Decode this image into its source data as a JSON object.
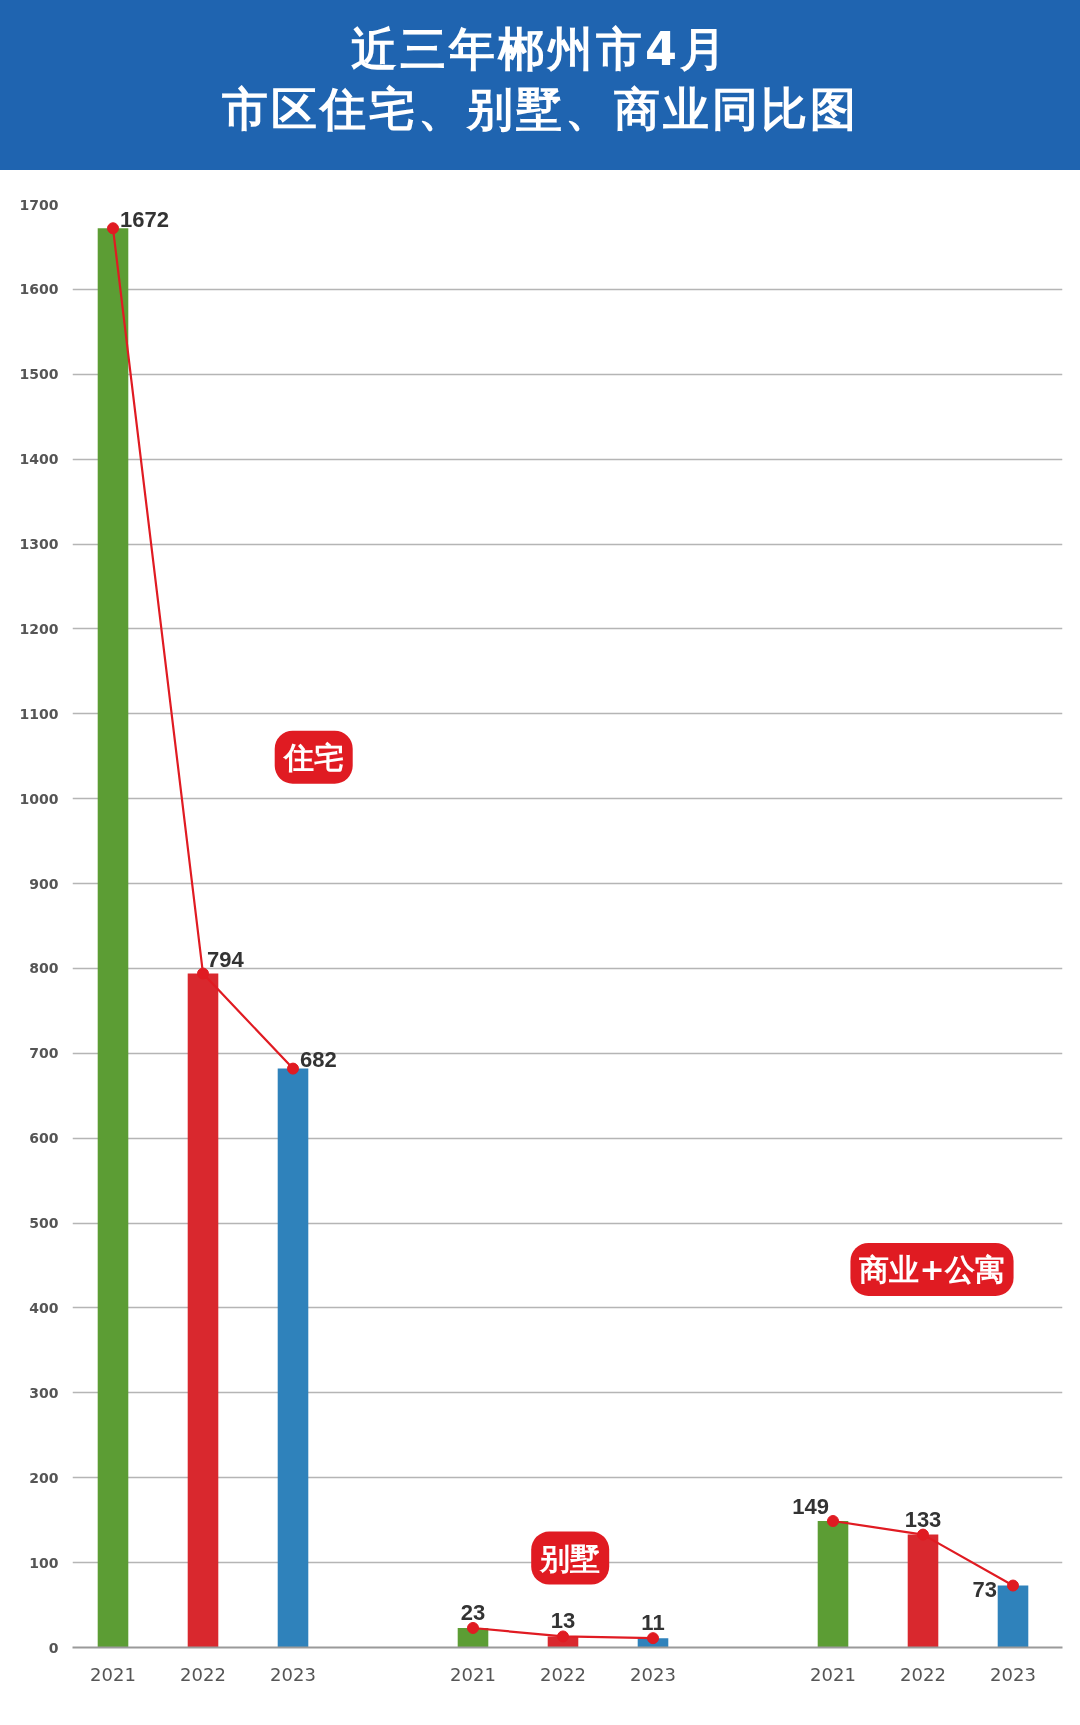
{
  "chart_data": {
    "type": "bar",
    "title": "近三年郴州市4月",
    "subtitle": "市区住宅、别墅、商业同比图",
    "categories": [
      "2021",
      "2022",
      "2023",
      null,
      "2021",
      "2022",
      "2023",
      null,
      "2021",
      "2022",
      "2023"
    ],
    "series": [
      {
        "colors": [
          "#5c9d34",
          "#d9282e",
          "#2f82bb",
          null,
          "#5c9d34",
          "#d9282e",
          "#2f82bb",
          null,
          "#5c9d34",
          "#d9282e",
          "#2f82bb"
        ],
        "values": [
          1672,
          794,
          682,
          null,
          23,
          13,
          11,
          null,
          149,
          133,
          73
        ],
        "value_labels": [
          "1672",
          "794",
          "682",
          null,
          "23",
          "13",
          "11",
          null,
          "149",
          "133",
          "73"
        ]
      },
      {
        "type": "line",
        "name": "住宅",
        "color": "#e01b22",
        "values": [
          1672,
          794,
          682,
          null,
          null,
          null,
          null,
          null,
          null,
          null,
          null
        ]
      },
      {
        "type": "line",
        "name": "别墅",
        "color": "#e01b22",
        "values": [
          null,
          null,
          null,
          null,
          23,
          13,
          11,
          null,
          null,
          null,
          null
        ]
      },
      {
        "type": "line",
        "name": "商业+公寓",
        "color": "#e01b22",
        "values": [
          null,
          null,
          null,
          null,
          null,
          null,
          null,
          null,
          149,
          133,
          73
        ]
      }
    ],
    "ylim": [
      0,
      1700
    ],
    "yticks": [
      0,
      100,
      200,
      300,
      400,
      500,
      600,
      700,
      800,
      900,
      1000,
      1100,
      1200,
      1300,
      1400,
      1500,
      1600,
      1700
    ],
    "grid": "y",
    "marker": "circle"
  }
}
